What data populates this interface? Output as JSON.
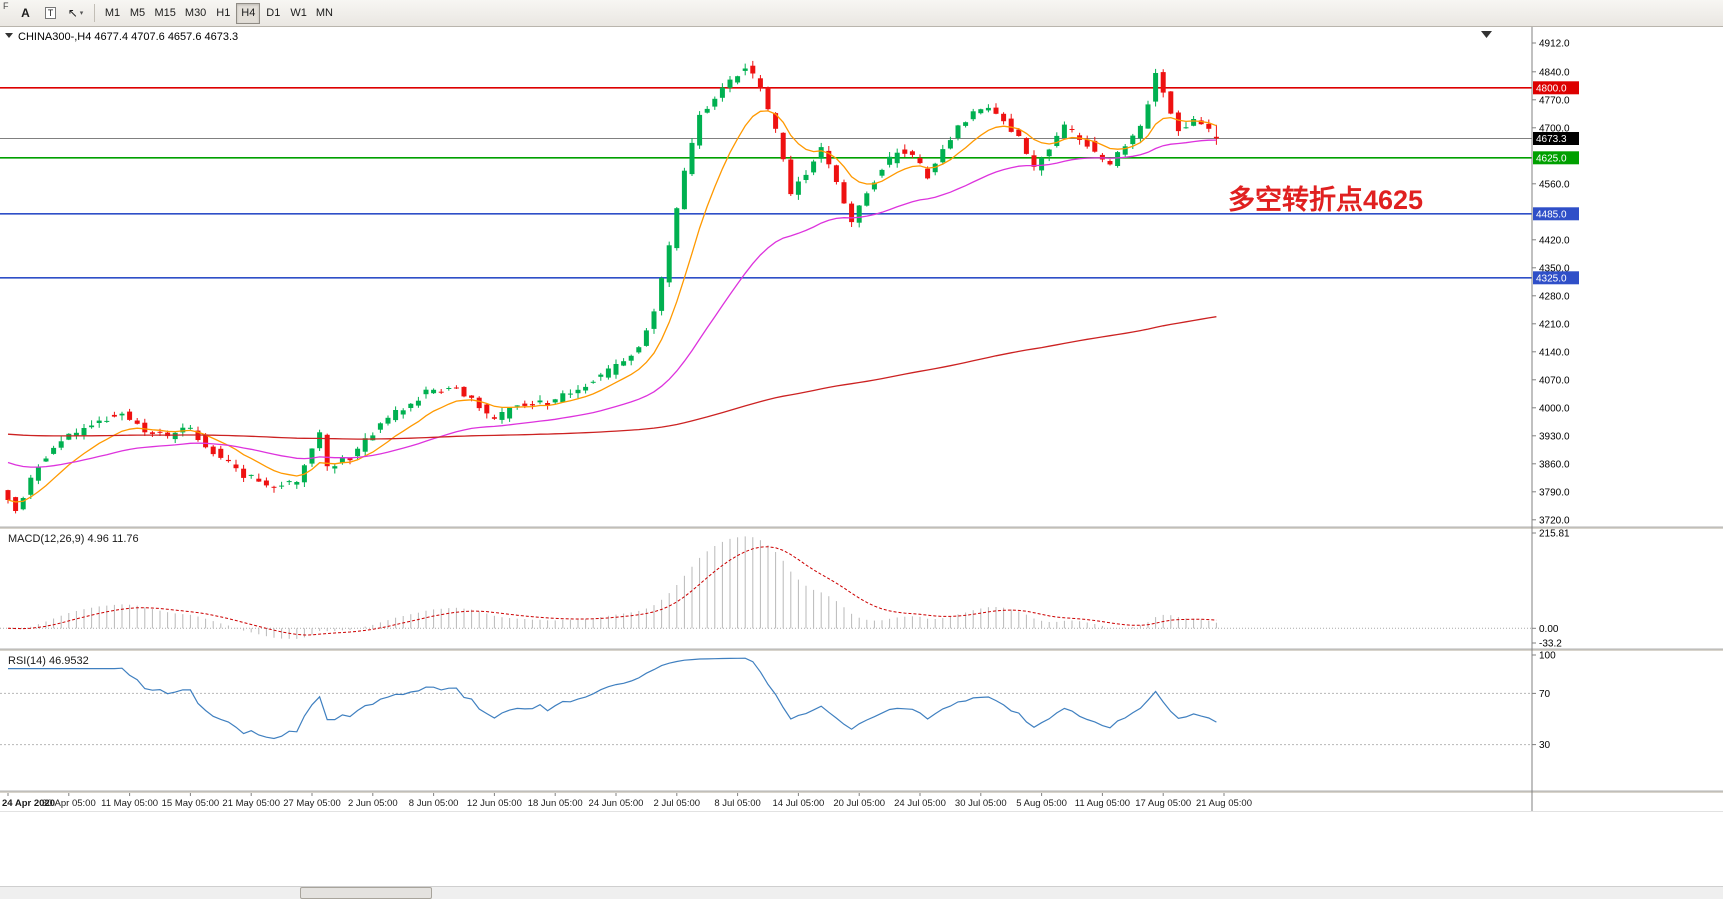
{
  "toolbar": {
    "left_label": "F",
    "annotate_tool_label": "A",
    "text_box_tool_label": "T",
    "cursor_icon": "↖",
    "dropdown_icon": "▾",
    "timeframes": [
      "M1",
      "M5",
      "M15",
      "M30",
      "H1",
      "H4",
      "D1",
      "W1",
      "MN"
    ],
    "active_timeframe": "H4"
  },
  "chart_data": {
    "type": "candlestick",
    "symbol": "CHINA300-",
    "timeframe": "H4",
    "symbol_header": "CHINA300-,H4 4677.4 4707.6 4657.6 4673.3",
    "last_ohlc": {
      "open": 4677.4,
      "high": 4707.6,
      "low": 4657.6,
      "close": 4673.3
    },
    "annotation": {
      "text": "多空转折点4625",
      "color": "#e02020"
    },
    "grid": "off",
    "price_axis": {
      "min_visible": 3702,
      "max_visible": 4952,
      "ticks": [
        4912,
        4840,
        4770,
        4700,
        4560,
        4420,
        4350,
        4280,
        4210,
        4140,
        4070,
        4000,
        3930,
        3860,
        3790,
        3720
      ]
    },
    "hlines": [
      {
        "level": 4800,
        "color": "#dd0000",
        "label": "4800.0",
        "width": 1.6
      },
      {
        "level": 4673.3,
        "color": "#808080",
        "label": "4673.3",
        "label_bg": "#000000",
        "width": 1
      },
      {
        "level": 4625,
        "color": "#00a000",
        "label": "4625.0",
        "width": 1.6
      },
      {
        "level": 4485,
        "color": "#2f4fc8",
        "label": "4485.0",
        "width": 1.6
      },
      {
        "level": 4325,
        "color": "#2f4fc8",
        "label": "4325.0",
        "width": 1.6
      }
    ],
    "colors": {
      "up": "#00b050",
      "down": "#ee1111"
    },
    "candles": {
      "count": 160,
      "spacing": 7.6,
      "body_noise": 18,
      "wick_noise": 13,
      "last": [
        4677.4,
        4707.6,
        4657.6,
        4673.3
      ],
      "waypoints": [
        [
          0,
          3800
        ],
        [
          2,
          3745
        ],
        [
          5,
          3860
        ],
        [
          8,
          3920
        ],
        [
          12,
          3960
        ],
        [
          16,
          3992
        ],
        [
          19,
          3935
        ],
        [
          22,
          3930
        ],
        [
          25,
          3948
        ],
        [
          28,
          3890
        ],
        [
          32,
          3832
        ],
        [
          36,
          3802
        ],
        [
          39,
          3818
        ],
        [
          42,
          3930
        ],
        [
          43,
          3856
        ],
        [
          46,
          3875
        ],
        [
          48,
          3920
        ],
        [
          52,
          3986
        ],
        [
          56,
          4040
        ],
        [
          60,
          4052
        ],
        [
          63,
          4000
        ],
        [
          65,
          3966
        ],
        [
          68,
          4010
        ],
        [
          72,
          4014
        ],
        [
          76,
          4048
        ],
        [
          80,
          4090
        ],
        [
          84,
          4150
        ],
        [
          86,
          4240
        ],
        [
          88,
          4400
        ],
        [
          90,
          4590
        ],
        [
          92,
          4730
        ],
        [
          94,
          4772
        ],
        [
          96,
          4816
        ],
        [
          98,
          4856
        ],
        [
          100,
          4800
        ],
        [
          102,
          4690
        ],
        [
          104,
          4538
        ],
        [
          106,
          4586
        ],
        [
          108,
          4650
        ],
        [
          110,
          4556
        ],
        [
          112,
          4462
        ],
        [
          114,
          4544
        ],
        [
          116,
          4600
        ],
        [
          118,
          4640
        ],
        [
          120,
          4628
        ],
        [
          122,
          4580
        ],
        [
          124,
          4644
        ],
        [
          126,
          4700
        ],
        [
          128,
          4740
        ],
        [
          130,
          4758
        ],
        [
          132,
          4716
        ],
        [
          134,
          4678
        ],
        [
          136,
          4602
        ],
        [
          138,
          4654
        ],
        [
          140,
          4700
        ],
        [
          142,
          4678
        ],
        [
          144,
          4640
        ],
        [
          146,
          4604
        ],
        [
          148,
          4662
        ],
        [
          150,
          4700
        ],
        [
          151,
          4758
        ],
        [
          152,
          4840
        ],
        [
          153,
          4796
        ],
        [
          155,
          4692
        ],
        [
          157,
          4724
        ],
        [
          160,
          4680
        ]
      ]
    },
    "moving_averages": [
      {
        "name": "fast",
        "color": "#ff9900",
        "period": 10,
        "seed": null
      },
      {
        "name": "medium",
        "color": "#dd33dd",
        "period": 40,
        "seed": 3868
      },
      {
        "name": "slow",
        "color": "#cc2222",
        "period": 300,
        "seed": 3935
      }
    ],
    "macd": {
      "label": "MACD(12,26,9)",
      "values": "4.96 11.76",
      "fast": 12,
      "slow": 26,
      "signal_period": 9,
      "hist_color": "#b9b9b9",
      "signal_color": "#cc0000",
      "ticks": [
        {
          "v": 215.81,
          "label": "215.81"
        },
        {
          "v": 0,
          "label": "0.00"
        },
        {
          "v": -33.2,
          "label": "-33.2"
        }
      ]
    },
    "rsi": {
      "label": "RSI(14)",
      "value": "46.9532",
      "period": 14,
      "color": "#4080c0",
      "levels": [
        {
          "v": 100,
          "label": "100"
        },
        {
          "v": 70,
          "label": "70"
        },
        {
          "v": 30,
          "label": "30"
        }
      ]
    },
    "dates": [
      "24 Apr 2020",
      "30 Apr 05:00",
      "11 May 05:00",
      "15 May 05:00",
      "21 May 05:00",
      "27 May 05:00",
      "2 Jun 05:00",
      "8 Jun 05:00",
      "12 Jun 05:00",
      "18 Jun 05:00",
      "24 Jun 05:00",
      "2 Jul 05:00",
      "8 Jul 05:00",
      "14 Jul 05:00",
      "20 Jul 05:00",
      "24 Jul 05:00",
      "30 Jul 05:00",
      "5 Aug 05:00",
      "11 Aug 05:00",
      "17 Aug 05:00",
      "21 Aug 05:00"
    ]
  }
}
